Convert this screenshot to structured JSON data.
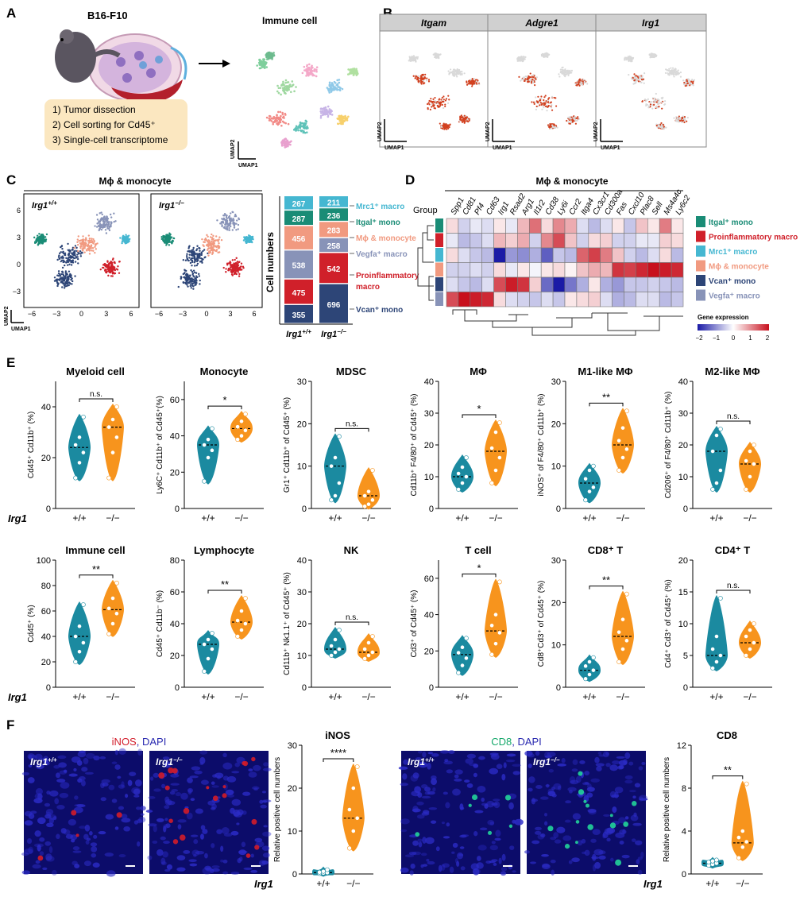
{
  "panel_letters": [
    "A",
    "B",
    "C",
    "D",
    "E",
    "F"
  ],
  "panelA": {
    "tumor_label": "B16-F10",
    "immune_label": "Immune cell",
    "steps": [
      "1) Tumor dissection",
      "2) Cell sorting for Cd45⁺",
      "3) Single-cell transcriptome"
    ],
    "umap_x": "UMAP1",
    "umap_y": "UMAP2"
  },
  "panelB": {
    "genes": [
      "Itgam",
      "Adgre1",
      "Irg1"
    ],
    "umap_x": "UMAP1",
    "umap_y": "UMAP2"
  },
  "panelC": {
    "title": "Mϕ & monocyte",
    "wt_label": "Irg1",
    "wt_sup": "+/+",
    "ko_label": "Irg1",
    "ko_sup": "−/−",
    "umap_x": "UMAP1",
    "umap_y": "UMAP2",
    "xticks": [
      "−6",
      "−3",
      "0",
      "3",
      "6"
    ],
    "yticks": [
      "6",
      "3",
      "0",
      "−3"
    ],
    "bar_ylabel": "Cell numbers",
    "bar_x": [
      "Irg1+/+",
      "Irg1−/−"
    ],
    "legend": [
      "Mrc1⁺ macro",
      "Itgal⁺ mono",
      "Mϕ & monocyte",
      "Vegfa⁺ macro",
      "Proinflammatory",
      "macro",
      "Vcan⁺ mono"
    ]
  },
  "chart_data": [
    {
      "type": "bar",
      "title": "",
      "stacked": true,
      "categories": [
        "Irg1+/+",
        "Irg1−/−"
      ],
      "series": [
        {
          "name": "Vcan⁺ mono",
          "color": "#2d4577",
          "values": [
            355,
            696
          ]
        },
        {
          "name": "Proinflammatory macro",
          "color": "#d0202a",
          "values": [
            475,
            542
          ]
        },
        {
          "name": "",
          "color": "#8893b8",
          "values": [
            538,
            258
          ]
        },
        {
          "name": "",
          "color": "#f19a80",
          "values": [
            456,
            283
          ]
        },
        {
          "name": "Itgal⁺ mono",
          "color": "#1a8c76",
          "values": [
            287,
            236
          ]
        },
        {
          "name": "Mrc1⁺ macro",
          "color": "#45b7d1",
          "values": [
            267,
            211
          ]
        }
      ],
      "ylabel": "Cell numbers"
    },
    {
      "type": "heatmap",
      "title": "Mϕ & monocyte",
      "columns": [
        "Spp1",
        "Cd81",
        "Pf4",
        "Cd63",
        "Irg1",
        "Rsad2",
        "Arg1",
        "Il1r2",
        "Cd38",
        "Ly6i",
        "Ccr2",
        "Itga4",
        "Cx3cr1",
        "Cd300a",
        "Fas",
        "Cxcl10",
        "Plac8",
        "Sell",
        "Ms4a4c",
        "Ly6c2"
      ],
      "rows": [
        "Itgal⁺ mono",
        "Proinflammatory macro",
        "Mrc1⁺ macro",
        "Mϕ & monocyte",
        "Vcan⁺ mono",
        "Vegfa⁺ macro"
      ],
      "row_colors": [
        "#1a8c76",
        "#d0202a",
        "#45b7d1",
        "#f19a80",
        "#2d4577",
        "#8893b8"
      ],
      "heat_rows": [
        [
          0.3,
          -0.4,
          -0.2,
          -0.3,
          0.2,
          -0.2,
          0.6,
          1.2,
          0.3,
          1.0,
          0.7,
          -0.3,
          -0.6,
          -0.3,
          0.2,
          -0.5,
          0.5,
          0.2,
          1.1,
          0.2
        ],
        [
          -0.2,
          -0.6,
          -0.5,
          -0.3,
          0.6,
          0.4,
          0.7,
          -0.4,
          1.0,
          1.5,
          0.5,
          -0.4,
          0.3,
          0.4,
          -0.4,
          -0.4,
          -0.2,
          -0.2,
          0.4,
          0.3
        ],
        [
          0.3,
          -0.3,
          -0.5,
          -0.6,
          -2.0,
          -0.9,
          -1.0,
          -0.7,
          -1.4,
          -0.5,
          -0.6,
          1.3,
          1.6,
          1.1,
          0.5,
          -0.4,
          -0.6,
          -0.3,
          0.3,
          -0.6
        ],
        [
          -0.4,
          -0.4,
          -0.3,
          -0.4,
          0.3,
          -0.2,
          0.2,
          -0.1,
          0.2,
          0.3,
          0.1,
          0.5,
          0.7,
          0.6,
          1.7,
          1.6,
          1.8,
          2.0,
          1.9,
          1.8
        ],
        [
          -0.3,
          -0.5,
          -0.6,
          -0.3,
          1.5,
          1.9,
          1.7,
          0.4,
          -1.3,
          -2.0,
          -1.2,
          -0.7,
          0.2,
          -0.7,
          -0.9,
          -0.5,
          -0.5,
          -0.4,
          -0.5,
          -0.6
        ],
        [
          1.5,
          2.0,
          1.9,
          1.8,
          0.3,
          -0.3,
          -0.4,
          -0.5,
          -0.3,
          -0.5,
          0.2,
          0.3,
          0.4,
          -0.3,
          -0.7,
          -0.6,
          -0.3,
          -0.3,
          -0.6,
          -0.5
        ]
      ],
      "group_label": "Group",
      "colorbar_label": "Gene expression",
      "colorbar_ticks": [
        "−2",
        "−1",
        "0",
        "1",
        "2"
      ],
      "range": [
        -2,
        2
      ]
    }
  ],
  "panelE": {
    "xgroup_label": "Irg1",
    "xticks": [
      "+/+",
      "−/−"
    ],
    "colors": {
      "wt": "#1b8aa0",
      "ko": "#f7941d"
    },
    "plots": [
      {
        "title": "Myeloid cell",
        "ylabel": "Cd45⁺ Cd11b⁺ (%)",
        "yticks": [
          "0",
          "20",
          "40"
        ],
        "ymax": 50,
        "sig": "n.s.",
        "wt_median": 24,
        "ko_median": 32,
        "wt_pts": [
          12,
          18,
          22,
          25,
          28,
          36
        ],
        "ko_pts": [
          12,
          22,
          28,
          32,
          35,
          40
        ]
      },
      {
        "title": "Monocyte",
        "ylabel": "Ly6C⁺ Cd11b⁺ of Cd45⁺(%)",
        "yticks": [
          "0",
          "20",
          "40",
          "60"
        ],
        "ymax": 70,
        "sig": "*",
        "wt_median": 35,
        "ko_median": 44,
        "wt_pts": [
          15,
          28,
          32,
          35,
          38,
          44
        ],
        "ko_pts": [
          38,
          40,
          43,
          45,
          48,
          52
        ]
      },
      {
        "title": "MDSC",
        "ylabel": "Gr1⁺ Cd11b⁺ of Cd45⁺ (%)",
        "yticks": [
          "0",
          "10",
          "20",
          "30"
        ],
        "ymax": 30,
        "sig": "n.s.",
        "wt_median": 10,
        "ko_median": 3,
        "wt_pts": [
          2,
          3,
          6,
          10,
          12,
          17
        ],
        "ko_pts": [
          0.5,
          1,
          2,
          3,
          4,
          9
        ]
      },
      {
        "title": "MΦ",
        "ylabel": "Cd11b⁺ F4/80⁺ of Cd45⁺ (%)",
        "yticks": [
          "0",
          "10",
          "20",
          "30",
          "40"
        ],
        "ymax": 40,
        "sig": "*",
        "wt_median": 10,
        "ko_median": 18,
        "wt_pts": [
          6,
          8,
          10,
          11,
          13,
          16
        ],
        "ko_pts": [
          8,
          12,
          16,
          19,
          24,
          27
        ]
      },
      {
        "title": "M1-like MΦ",
        "ylabel": "iNOS⁺ of F4/80⁺ Cd11b⁺ (%)",
        "yticks": [
          "0",
          "10",
          "20",
          "30"
        ],
        "ymax": 30,
        "sig": "**",
        "wt_median": 6,
        "ko_median": 15,
        "wt_pts": [
          2,
          4,
          5,
          7,
          9,
          10
        ],
        "ko_pts": [
          9,
          12,
          14,
          16,
          19,
          23
        ]
      },
      {
        "title": "M2-like MΦ",
        "ylabel": "Cd206⁺ of F4/80⁺ Cd11b⁺ (%)",
        "yticks": [
          "0",
          "10",
          "20",
          "30",
          "40"
        ],
        "ymax": 40,
        "sig": "n.s.",
        "wt_median": 18,
        "ko_median": 14,
        "wt_pts": [
          6,
          8,
          12,
          18,
          23,
          25
        ],
        "ko_pts": [
          6,
          10,
          14,
          15,
          18,
          20
        ]
      },
      {
        "title": "Immune cell",
        "ylabel": "Cd45⁺ (%)",
        "yticks": [
          "0",
          "20",
          "40",
          "60",
          "80",
          "100"
        ],
        "ymax": 100,
        "sig": "**",
        "wt_median": 40,
        "ko_median": 61,
        "wt_pts": [
          20,
          28,
          35,
          40,
          48,
          65
        ],
        "ko_pts": [
          42,
          50,
          58,
          62,
          70,
          82
        ]
      },
      {
        "title": "Lymphocyte",
        "ylabel": "Cd45⁺ Cd11b⁻ (%)",
        "yticks": [
          "0",
          "20",
          "40",
          "60",
          "80"
        ],
        "ymax": 80,
        "sig": "**",
        "wt_median": 27,
        "ko_median": 41,
        "wt_pts": [
          10,
          18,
          24,
          27,
          30,
          34
        ],
        "ko_pts": [
          32,
          36,
          40,
          42,
          48,
          56
        ]
      },
      {
        "title": "NK",
        "ylabel": "Cd11b⁺ Nk1.1⁺ of Cd45⁺ (%)",
        "yticks": [
          "0",
          "10",
          "20",
          "30",
          "40"
        ],
        "ymax": 40,
        "sig": "n.s.",
        "wt_median": 12,
        "ko_median": 11,
        "wt_pts": [
          10,
          11,
          12,
          13,
          15,
          18
        ],
        "ko_pts": [
          9,
          10,
          11,
          12,
          14,
          16
        ]
      },
      {
        "title": "T cell",
        "ylabel": "Cd3⁺ of Cd45⁺ (%)",
        "yticks": [
          "0",
          "20",
          "40",
          "60"
        ],
        "ymax": 70,
        "sig": "*",
        "wt_median": 18,
        "ko_median": 31,
        "wt_pts": [
          8,
          12,
          16,
          19,
          22,
          27
        ],
        "ko_pts": [
          18,
          24,
          30,
          34,
          40,
          58
        ]
      },
      {
        "title": "CD8⁺ T",
        "ylabel": "Cd8⁺Cd3⁺ of Cd45⁺ (%)",
        "yticks": [
          "0",
          "10",
          "20",
          "30"
        ],
        "ymax": 30,
        "sig": "**",
        "wt_median": 4,
        "ko_median": 12,
        "wt_pts": [
          2,
          3,
          4,
          5,
          6,
          7
        ],
        "ko_pts": [
          6,
          9,
          11,
          13,
          16,
          22
        ]
      },
      {
        "title": "CD4⁺ T",
        "ylabel": "Cd4⁺ Cd3⁺ of Cd45⁺ (%)",
        "yticks": [
          "0",
          "5",
          "10",
          "15",
          "20"
        ],
        "ymax": 20,
        "sig": "n.s.",
        "wt_median": 5,
        "ko_median": 7,
        "wt_pts": [
          3,
          4,
          5,
          6,
          8,
          14
        ],
        "ko_pts": [
          5,
          6,
          7,
          8,
          9,
          10
        ]
      }
    ]
  },
  "panelF": {
    "stain1": "iNOS",
    "stain1_sep": ", DAPI",
    "stain2": "CD8",
    "stain2_sep": ", DAPI",
    "wt_label": "Irg1",
    "wt_sup": "+/+",
    "ko_label": "Irg1",
    "ko_sup": "−/−",
    "xgroup_label": "Irg1",
    "xticks": [
      "+/+",
      "−/−"
    ],
    "plots": [
      {
        "title": "iNOS",
        "ylabel": "Relative positive cell numbers",
        "yticks": [
          "0",
          "10",
          "20",
          "30"
        ],
        "ymax": 30,
        "sig": "****",
        "wt_median": 0.3,
        "ko_median": 13,
        "wt_pts": [
          0.1,
          0.2,
          0.3,
          0.4,
          0.6,
          1.0
        ],
        "ko_pts": [
          6,
          10,
          13,
          15,
          20,
          25
        ]
      },
      {
        "title": "CD8",
        "ylabel": "Relative positive cell numbers",
        "yticks": [
          "0",
          "4",
          "8",
          "12"
        ],
        "ymax": 12,
        "sig": "**",
        "wt_median": 1,
        "ko_median": 2.9,
        "wt_pts": [
          0.8,
          0.9,
          1.0,
          1.1,
          1.2,
          1.3
        ],
        "ko_pts": [
          1.5,
          2.5,
          3,
          3.4,
          4,
          8.4
        ]
      }
    ]
  }
}
